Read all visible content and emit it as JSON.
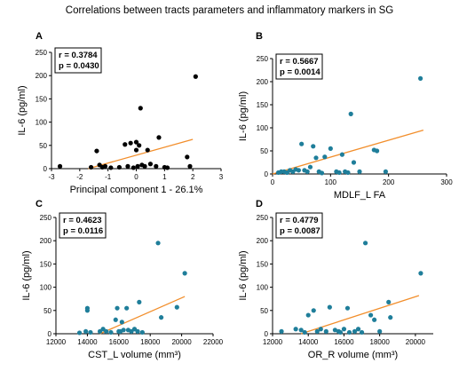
{
  "title": "Correlations between tracts parameters and inflammatory markers in SG",
  "chart_data": [
    {
      "panel": "A",
      "type": "scatter",
      "xlabel": "Principal component 1 - 26.1%",
      "ylabel": "IL-6 (pg/ml)",
      "xlim": [
        -3,
        3
      ],
      "ylim": [
        0,
        250
      ],
      "xticks": [
        -3,
        -2,
        -1,
        0,
        1,
        2,
        3
      ],
      "yticks": [
        0,
        50,
        100,
        150,
        200,
        250
      ],
      "r_label": "r = 0.3784",
      "p_label": "p = 0.0430",
      "point_color": "#000000",
      "line_color": "#f28e2b",
      "fit": {
        "x1": -1.7,
        "y1": 0,
        "x2": 2.0,
        "y2": 63
      },
      "points": [
        [
          -2.7,
          5
        ],
        [
          -1.6,
          3
        ],
        [
          -1.4,
          38
        ],
        [
          -1.3,
          8
        ],
        [
          -1.2,
          3
        ],
        [
          -1.1,
          5
        ],
        [
          -0.9,
          2
        ],
        [
          -0.6,
          3
        ],
        [
          -0.4,
          52
        ],
        [
          -0.3,
          5
        ],
        [
          -0.2,
          55
        ],
        [
          -0.1,
          2
        ],
        [
          0,
          57
        ],
        [
          0,
          40
        ],
        [
          0.05,
          5
        ],
        [
          0.1,
          50
        ],
        [
          0.15,
          130
        ],
        [
          0.2,
          8
        ],
        [
          0.3,
          5
        ],
        [
          0.4,
          40
        ],
        [
          0.5,
          10
        ],
        [
          0.7,
          5
        ],
        [
          0.8,
          67
        ],
        [
          1.0,
          3
        ],
        [
          1.1,
          2
        ],
        [
          1.8,
          25
        ],
        [
          1.9,
          5
        ],
        [
          2.1,
          198
        ]
      ]
    },
    {
      "panel": "B",
      "type": "scatter",
      "xlabel": "MDLF_L FA",
      "ylabel": "IL-6 (pg/ml)",
      "xlim": [
        0,
        300
      ],
      "ylim": [
        0,
        250
      ],
      "xticks": [
        0,
        100,
        200,
        300
      ],
      "yticks": [
        0,
        50,
        100,
        150,
        200,
        250
      ],
      "r_label": "r = 0.5667",
      "p_label": "p = 0.0014",
      "point_color": "#1f7e9a",
      "line_color": "#f28e2b",
      "fit": {
        "x1": 0,
        "y1": 0,
        "x2": 260,
        "y2": 95
      },
      "points": [
        [
          10,
          3
        ],
        [
          15,
          5
        ],
        [
          20,
          5
        ],
        [
          25,
          3
        ],
        [
          30,
          8
        ],
        [
          35,
          5
        ],
        [
          40,
          10
        ],
        [
          45,
          8
        ],
        [
          50,
          65
        ],
        [
          55,
          8
        ],
        [
          60,
          5
        ],
        [
          65,
          15
        ],
        [
          70,
          60
        ],
        [
          75,
          35
        ],
        [
          80,
          5
        ],
        [
          85,
          2
        ],
        [
          90,
          37
        ],
        [
          100,
          55
        ],
        [
          110,
          5
        ],
        [
          115,
          3
        ],
        [
          120,
          42
        ],
        [
          125,
          5
        ],
        [
          130,
          3
        ],
        [
          135,
          130
        ],
        [
          140,
          25
        ],
        [
          150,
          5
        ],
        [
          175,
          52
        ],
        [
          180,
          50
        ],
        [
          195,
          5
        ],
        [
          255,
          207
        ]
      ]
    },
    {
      "panel": "C",
      "type": "scatter",
      "xlabel": "CST_L volume (mm³)",
      "ylabel": "IL-6 (pg/ml)",
      "xlim": [
        12000,
        22000
      ],
      "ylim": [
        0,
        250
      ],
      "xticks": [
        12000,
        14000,
        16000,
        18000,
        20000,
        22000
      ],
      "yticks": [
        0,
        50,
        100,
        150,
        200,
        250
      ],
      "r_label": "r = 0.4623",
      "p_label": "p = 0.0116",
      "point_color": "#1f7e9a",
      "line_color": "#f28e2b",
      "fit": {
        "x1": 14800,
        "y1": 0,
        "x2": 20200,
        "y2": 80
      },
      "points": [
        [
          13500,
          2
        ],
        [
          13900,
          5
        ],
        [
          14000,
          55
        ],
        [
          14000,
          50
        ],
        [
          14200,
          3
        ],
        [
          14800,
          5
        ],
        [
          15000,
          10
        ],
        [
          15200,
          5
        ],
        [
          15500,
          3
        ],
        [
          15800,
          30
        ],
        [
          15900,
          55
        ],
        [
          16000,
          5
        ],
        [
          16100,
          5
        ],
        [
          16200,
          25
        ],
        [
          16300,
          8
        ],
        [
          16500,
          55
        ],
        [
          16600,
          8
        ],
        [
          16800,
          5
        ],
        [
          17000,
          10
        ],
        [
          17200,
          5
        ],
        [
          17300,
          68
        ],
        [
          17500,
          3
        ],
        [
          18500,
          195
        ],
        [
          18700,
          35
        ],
        [
          19700,
          57
        ],
        [
          20200,
          130
        ]
      ]
    },
    {
      "panel": "D",
      "type": "scatter",
      "xlabel": "OR_R volume (mm³)",
      "ylabel": "IL-6 (pg/ml)",
      "xlim": [
        12000,
        21000
      ],
      "ylim": [
        0,
        250
      ],
      "xticks": [
        12000,
        14000,
        16000,
        18000,
        20000
      ],
      "yticks": [
        0,
        50,
        100,
        150,
        200,
        250
      ],
      "r_label": "r = 0.4779",
      "p_label": "p = 0.0087",
      "point_color": "#1f7e9a",
      "line_color": "#f28e2b",
      "fit": {
        "x1": 13600,
        "y1": 0,
        "x2": 20200,
        "y2": 82
      },
      "points": [
        [
          12500,
          5
        ],
        [
          13300,
          10
        ],
        [
          13600,
          8
        ],
        [
          13800,
          3
        ],
        [
          14000,
          40
        ],
        [
          14300,
          50
        ],
        [
          14500,
          5
        ],
        [
          14700,
          10
        ],
        [
          15000,
          5
        ],
        [
          15200,
          57
        ],
        [
          15500,
          8
        ],
        [
          15700,
          5
        ],
        [
          15800,
          3
        ],
        [
          16000,
          10
        ],
        [
          16200,
          55
        ],
        [
          16300,
          3
        ],
        [
          16600,
          5
        ],
        [
          16800,
          10
        ],
        [
          17000,
          3
        ],
        [
          17200,
          195
        ],
        [
          17500,
          40
        ],
        [
          17700,
          30
        ],
        [
          18000,
          5
        ],
        [
          18500,
          68
        ],
        [
          18600,
          35
        ],
        [
          20300,
          130
        ]
      ]
    }
  ]
}
